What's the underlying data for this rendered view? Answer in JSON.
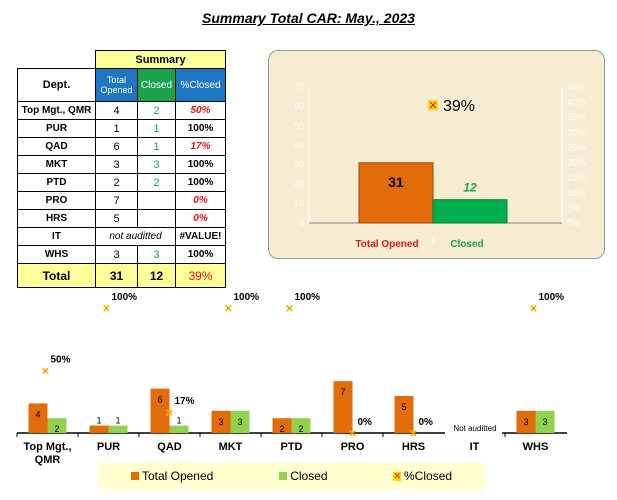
{
  "title": "Summary Total CAR: May., 2023",
  "table": {
    "summary_label": "Summary",
    "headers": {
      "dept": "Dept.",
      "opened": "Total Opened",
      "closed": "Closed",
      "pct": "%Closed"
    },
    "rows": [
      {
        "dept": "Top Mgt., QMR",
        "opened": "4",
        "closed": "2",
        "pct": "50%",
        "pct_red": true
      },
      {
        "dept": "PUR",
        "opened": "1",
        "closed": "1",
        "pct": "100%",
        "pct_red": false
      },
      {
        "dept": "QAD",
        "opened": "6",
        "closed": "1",
        "pct": "17%",
        "pct_red": true
      },
      {
        "dept": "MKT",
        "opened": "3",
        "closed": "3",
        "pct": "100%",
        "pct_red": false
      },
      {
        "dept": "PTD",
        "opened": "2",
        "closed": "2",
        "pct": "100%",
        "pct_red": false
      },
      {
        "dept": "PRO",
        "opened": "7",
        "closed": "",
        "pct": "0%",
        "pct_red": true
      },
      {
        "dept": "HRS",
        "opened": "5",
        "closed": "",
        "pct": "0%",
        "pct_red": true
      },
      {
        "dept": "IT",
        "opened": "not auditted",
        "closed": "",
        "pct": "#VALUE!",
        "pct_red": false,
        "merged": true
      },
      {
        "dept": "WHS",
        "opened": "3",
        "closed": "3",
        "pct": "100%",
        "pct_red": false
      }
    ],
    "total": {
      "label": "Total",
      "opened": "31",
      "closed": "12",
      "pct": "39%"
    }
  },
  "chart_data": [
    {
      "type": "bar",
      "categories": [
        "Total Opened",
        "Closed"
      ],
      "values": [
        31,
        12
      ],
      "category_tick": "1",
      "colors": [
        "#e26b0a",
        "#00b050"
      ],
      "ylim": [
        0,
        70
      ],
      "yticks": [
        0,
        10,
        20,
        30,
        40,
        50,
        60,
        70
      ],
      "y2lim": [
        0,
        0.45
      ],
      "y2ticks": [
        "0%",
        "5%",
        "10%",
        "15%",
        "20%",
        "25%",
        "30%",
        "35%",
        "40%",
        "45%"
      ],
      "pct_marker": {
        "value": 0.39,
        "label": "39%"
      },
      "data_labels": [
        "31",
        "12"
      ]
    },
    {
      "type": "bar",
      "categories": [
        "Top Mgt., QMR",
        "PUR",
        "QAD",
        "MKT",
        "PTD",
        "PRO",
        "HRS",
        "IT",
        "WHS"
      ],
      "series": [
        {
          "name": "Total Opened",
          "color": "#e26b0a",
          "values": [
            4,
            1,
            6,
            3,
            2,
            7,
            5,
            null,
            3
          ]
        },
        {
          "name": "Closed",
          "color": "#92d050",
          "values": [
            2,
            1,
            1,
            3,
            2,
            null,
            null,
            null,
            3
          ]
        },
        {
          "name": "%Closed",
          "color": "#ff8c00",
          "values": [
            0.5,
            1,
            0.17,
            1,
            1,
            0,
            0,
            null,
            1
          ],
          "labels": [
            "50%",
            "100%",
            "17%",
            "100%",
            "100%",
            "0%",
            "0%",
            "",
            "100%"
          ]
        }
      ],
      "annotation": "Not auditted",
      "legend": "bottom"
    }
  ]
}
